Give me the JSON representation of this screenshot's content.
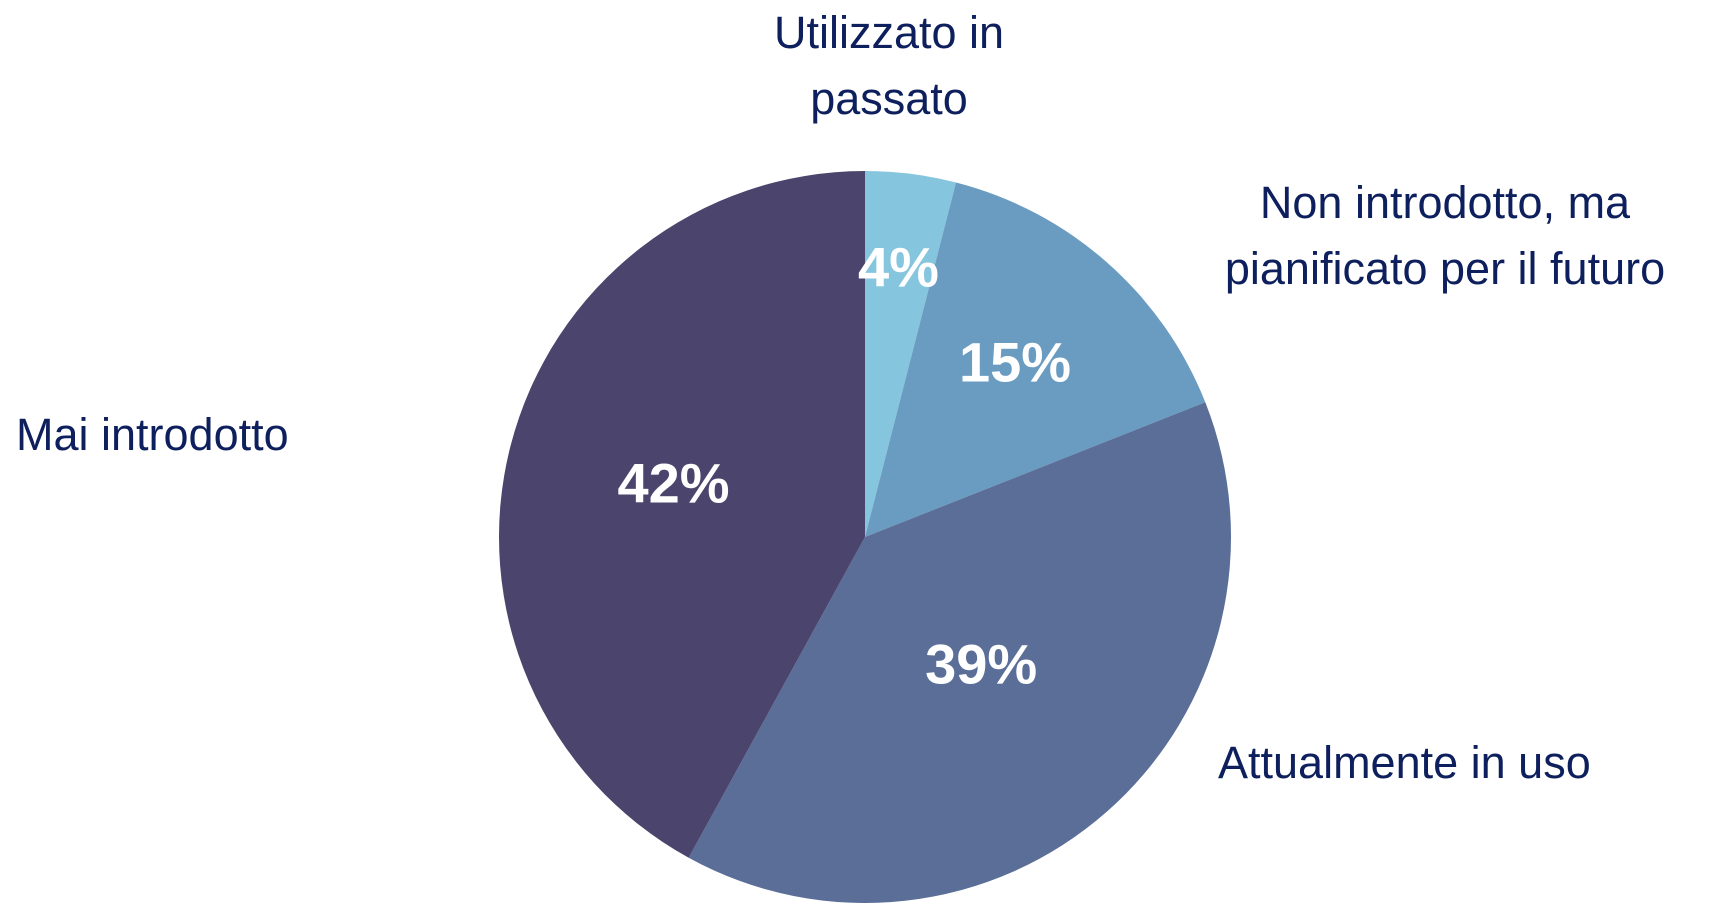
{
  "chart_data": {
    "type": "pie",
    "categories": [
      "Utilizzato in passato",
      "Non introdotto, ma pianificato per il futuro",
      "Mai introdotto",
      "Attualmente in uso"
    ],
    "values": [
      4,
      15,
      39,
      42
    ],
    "value_labels": [
      "4%",
      "15%",
      "39%",
      "42%"
    ],
    "colors": [
      "#85c5de",
      "#6a9bc0",
      "#5a6e98",
      "#4b456d"
    ]
  }
}
